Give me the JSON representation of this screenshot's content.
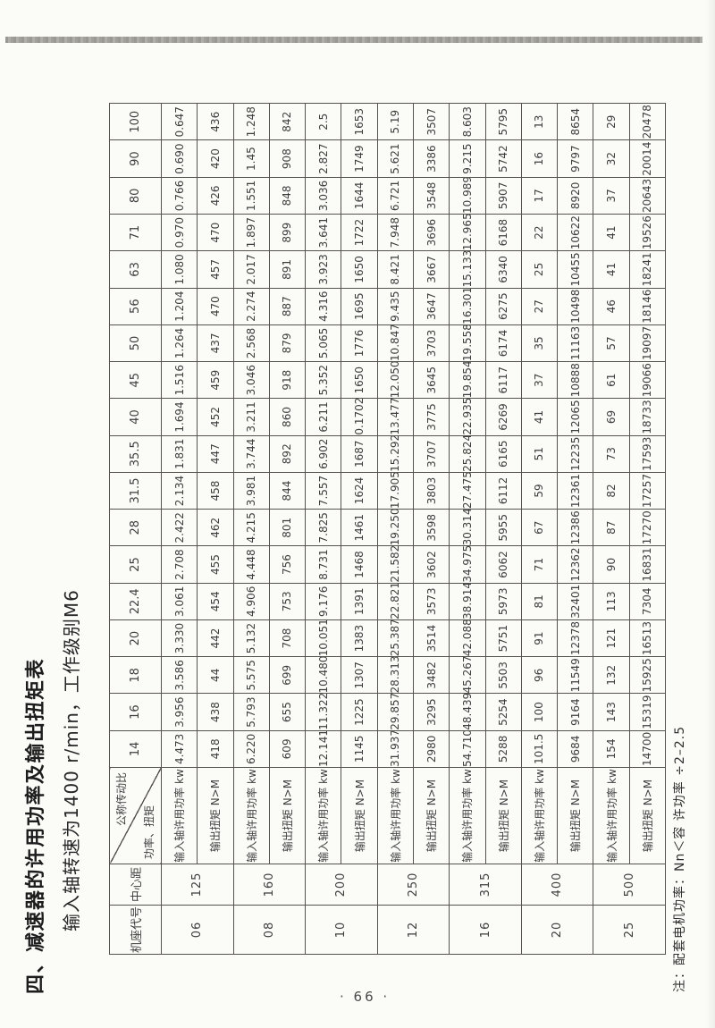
{
  "title": "四、减速器的许用功率及输出扭矩表",
  "subtitle": "输入轴转速为1400 r/min，工作级别M6",
  "note": "注：配套电机功率：Nn＜容 许功率 ÷2–2.5",
  "page_number": "· 66 ·",
  "table": {
    "col_frame_code": "机座代号",
    "col_center_distance": "中心距",
    "diag_top": "公称传动比",
    "diag_bottom": "功率、扭矩",
    "power_label": "输入轴许用功率 kw",
    "torque_label": "输出扭矩 N>M",
    "ratios": [
      "14",
      "16",
      "18",
      "20",
      "22.4",
      "25",
      "28",
      "31.5",
      "35.5",
      "40",
      "45",
      "50",
      "56",
      "63",
      "71",
      "80",
      "90",
      "100"
    ],
    "rows": [
      {
        "code": "06",
        "center": "125",
        "power": [
          "4.473",
          "3.956",
          "3.586",
          "3.330",
          "3.061",
          "2.708",
          "2.422",
          "2.134",
          "1.831",
          "1.694",
          "1.516",
          "1.264",
          "1.204",
          "1.080",
          "0.970",
          "0.766",
          "0.690",
          "0.647"
        ],
        "torque": [
          "418",
          "438",
          "44",
          "442",
          "454",
          "455",
          "462",
          "458",
          "447",
          "452",
          "459",
          "437",
          "470",
          "457",
          "470",
          "426",
          "420",
          "436"
        ]
      },
      {
        "code": "08",
        "center": "160",
        "power": [
          "6.220",
          "5.793",
          "5.575",
          "5.132",
          "4.906",
          "4.448",
          "4.215",
          "3.981",
          "3.744",
          "3.211",
          "3.046",
          "2.568",
          "2.274",
          "2.017",
          "1.897",
          "1.551",
          "1.45",
          "1.248"
        ],
        "torque": [
          "609",
          "655",
          "699",
          "708",
          "753",
          "756",
          "801",
          "844",
          "892",
          "860",
          "918",
          "879",
          "887",
          "891",
          "899",
          "848",
          "908",
          "842"
        ]
      },
      {
        "code": "10",
        "center": "200",
        "power": [
          "12.141",
          "11.322",
          "10.480",
          "10.051",
          "9.176",
          "8.731",
          "7.825",
          "7.557",
          "6.902",
          "6.211",
          "5.352",
          "5.065",
          "4.316",
          "3.923",
          "3.641",
          "3.036",
          "2.827",
          "2.5"
        ],
        "torque": [
          "1145",
          "1225",
          "1307",
          "1383",
          "1391",
          "1468",
          "1461",
          "1624",
          "1687",
          "0.1702",
          "1650",
          "1776",
          "1695",
          "1650",
          "1722",
          "1644",
          "1749",
          "1653"
        ]
      },
      {
        "code": "12",
        "center": "250",
        "power": [
          "31.937",
          "29.857",
          "28.313",
          "25.387",
          "22.821",
          "21.582",
          "19.250",
          "17.905",
          "15.292",
          "13.477",
          "12.050",
          "10.847",
          "9.435",
          "8.421",
          "7.948",
          "6.721",
          "5.621",
          "5.19"
        ],
        "torque": [
          "2980",
          "3295",
          "3482",
          "3514",
          "3573",
          "3602",
          "3598",
          "3803",
          "3707",
          "3775",
          "3645",
          "3703",
          "3647",
          "3667",
          "3696",
          "3548",
          "3386",
          "3507"
        ]
      },
      {
        "code": "16",
        "center": "315",
        "power": [
          "54.710",
          "48.439",
          "45.267",
          "42.088",
          "38.914",
          "34.975",
          "30.314",
          "27.475",
          "25.824",
          "22.935",
          "19.854",
          "19.558",
          "16.301",
          "15.133",
          "12.965",
          "10.989",
          "9.215",
          "8.603"
        ],
        "torque": [
          "5288",
          "5254",
          "5503",
          "5751",
          "5973",
          "6062",
          "5955",
          "6112",
          "6165",
          "6269",
          "6117",
          "6174",
          "6275",
          "6340",
          "6168",
          "5907",
          "5742",
          "5795"
        ]
      },
      {
        "code": "20",
        "center": "400",
        "power": [
          "101.5",
          "100",
          "96",
          "91",
          "81",
          "71",
          "67",
          "59",
          "51",
          "41",
          "37",
          "35",
          "27",
          "25",
          "22",
          "17",
          "16",
          "13"
        ],
        "torque": [
          "9684",
          "9164",
          "11549",
          "12378",
          "32401",
          "12362",
          "12386",
          "12361",
          "12235",
          "12065",
          "10888",
          "11163",
          "10498",
          "10455",
          "10622",
          "8920",
          "9797",
          "8654"
        ]
      },
      {
        "code": "25",
        "center": "500",
        "power": [
          "154",
          "143",
          "132",
          "121",
          "113",
          "90",
          "87",
          "82",
          "73",
          "69",
          "61",
          "57",
          "46",
          "41",
          "41",
          "37",
          "32",
          "29"
        ],
        "torque": [
          "14700",
          "15319",
          "15925",
          "16513",
          "7304",
          "16831",
          "17270",
          "17257",
          "17593",
          "18733",
          "19066",
          "19097",
          "18146",
          "18241",
          "19526",
          "20643",
          "20014",
          "20478"
        ]
      }
    ]
  }
}
